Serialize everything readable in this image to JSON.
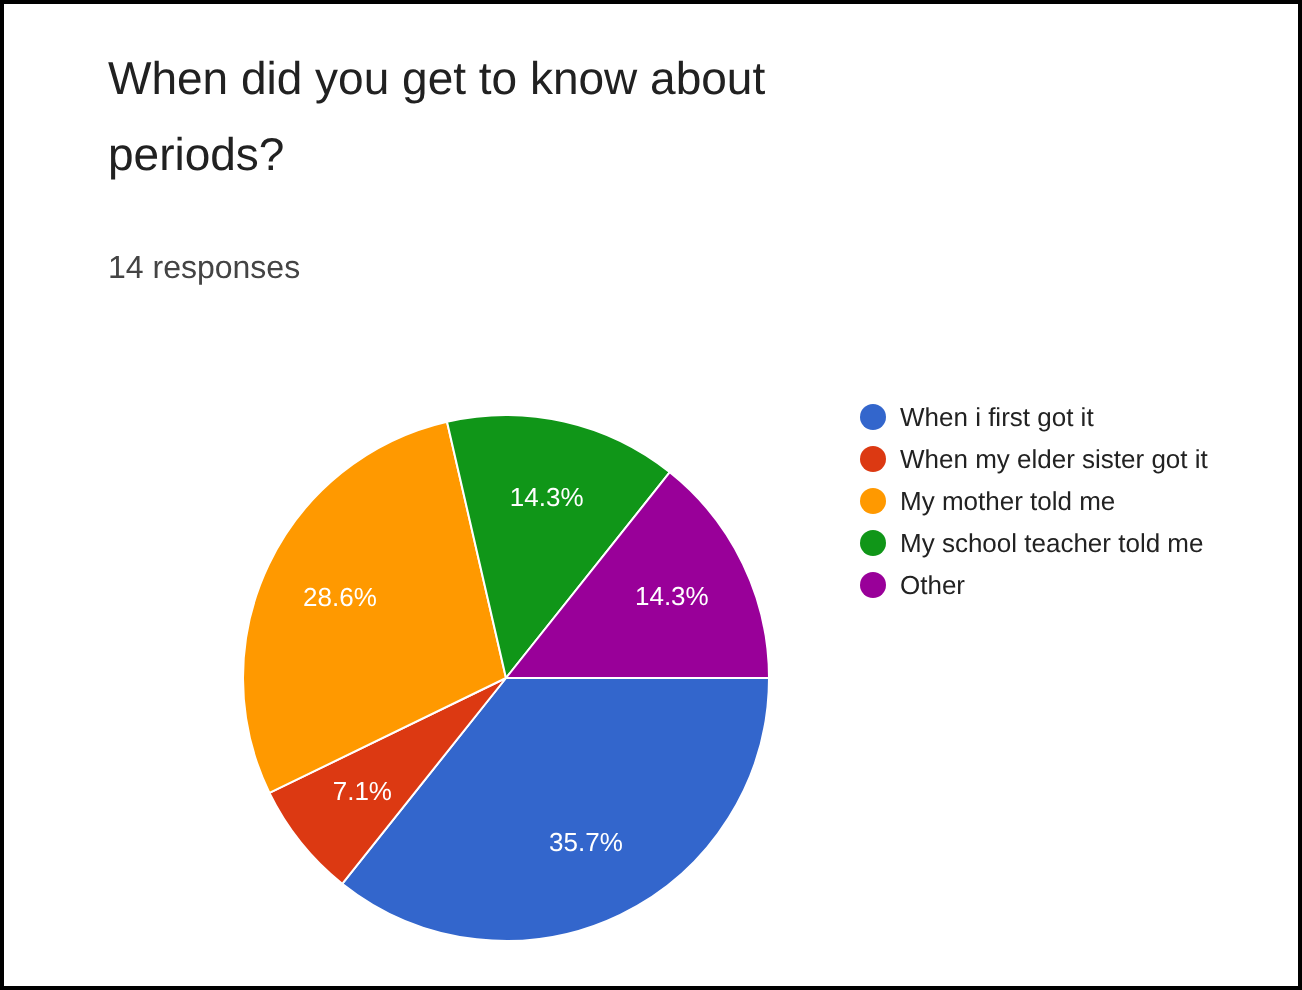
{
  "chart_data": {
    "type": "pie",
    "title": "When did you get to know about periods?",
    "subtitle": "14 responses",
    "categories": [
      "When i first got it",
      "When my elder sister got it",
      "My mother told me",
      "My school teacher told me",
      "Other"
    ],
    "values": [
      35.7,
      7.1,
      28.6,
      14.3,
      14.3
    ],
    "colors": [
      "#3366cc",
      "#dc3912",
      "#ff9900",
      "#109618",
      "#990099"
    ],
    "value_labels": [
      "35.7%",
      "7.1%",
      "28.6%",
      "14.3%",
      "14.3%"
    ],
    "legend": "right"
  }
}
